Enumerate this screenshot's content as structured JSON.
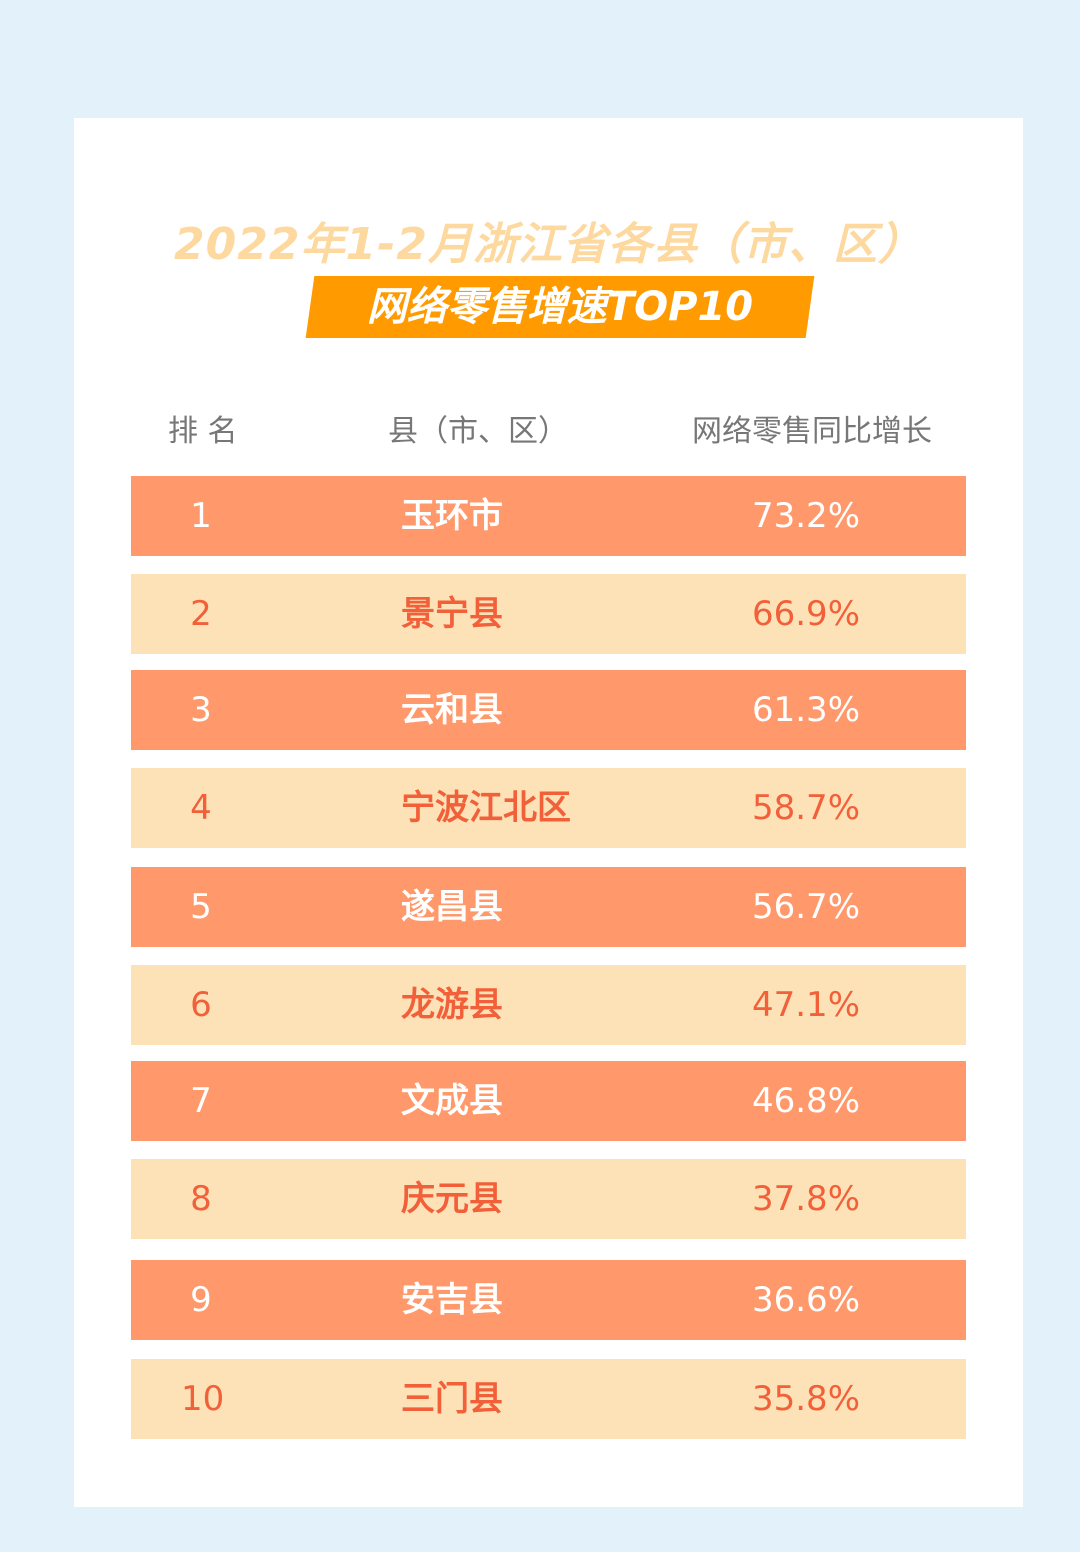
{
  "title_line1": "2022年1-2月浙江省各县（市、区）",
  "title_line2": "网络零售增速TOP10",
  "colors": {
    "background": "#E3F1FB",
    "banner": "#FF9B00",
    "row_dark": "#FF996B",
    "row_light": "#FDE2B8",
    "text_light_row": "#F2603A",
    "title_light": "#FDD9A0"
  },
  "chart_data": {
    "type": "table",
    "columns": [
      "排 名",
      "县（市、区）",
      "网络零售同比增长"
    ],
    "rows": [
      [
        "1",
        "玉环市",
        "73.2%"
      ],
      [
        "2",
        "景宁县",
        "66.9%"
      ],
      [
        "3",
        "云和县",
        "61.3%"
      ],
      [
        "4",
        "宁波江北区",
        "58.7%"
      ],
      [
        "5",
        "遂昌县",
        "56.7%"
      ],
      [
        "6",
        "龙游县",
        "47.1%"
      ],
      [
        "7",
        "文成县",
        "46.8%"
      ],
      [
        "8",
        "庆元县",
        "37.8%"
      ],
      [
        "9",
        "安吉县",
        "36.6%"
      ],
      [
        "10",
        "三门县",
        "35.8%"
      ]
    ]
  }
}
